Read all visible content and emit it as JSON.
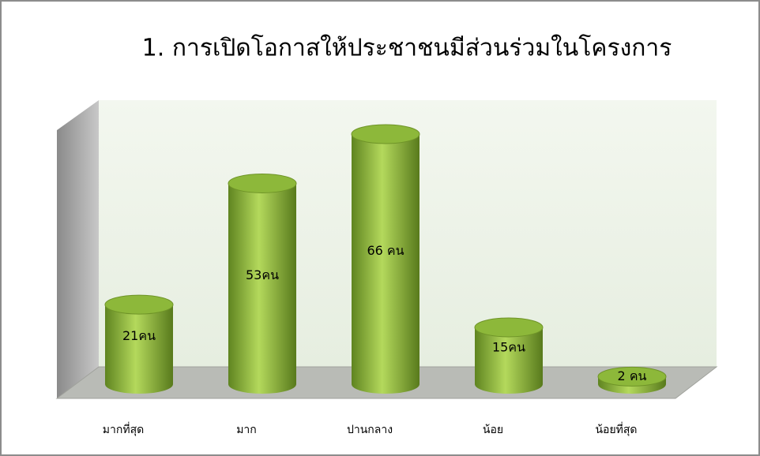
{
  "chart_data": {
    "type": "bar3d",
    "title": "1. การเปิดโอกาสให้ประชาชนมีส่วนร่วมในโครงการ",
    "categories": [
      "มากที่สุด",
      "มาก",
      "ปานกลาง",
      "น้อย",
      "น้อยที่สุด"
    ],
    "values": [
      21,
      53,
      66,
      15,
      2
    ],
    "value_labels": [
      "21คน",
      "53คน",
      "66 คน",
      "15คน",
      "2 คน"
    ],
    "color": "#8db83a"
  }
}
